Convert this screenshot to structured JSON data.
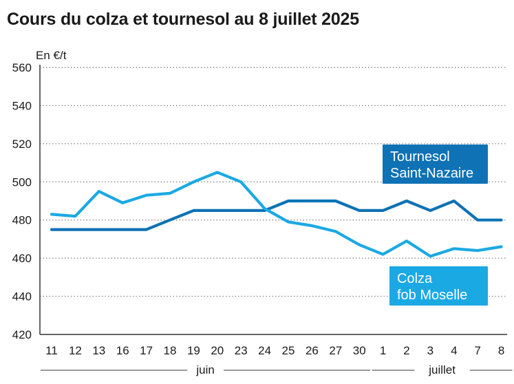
{
  "title": "Cours du colza et tournesol au 8 juillet 2025",
  "chart_data": {
    "type": "line",
    "title": "Cours du colza et tournesol au 8 juillet 2025",
    "ylabel": "En €/t",
    "ylim": [
      420,
      560
    ],
    "yticks": [
      560,
      540,
      520,
      500,
      480,
      460,
      440,
      420
    ],
    "categories": [
      "11",
      "12",
      "13",
      "16",
      "17",
      "18",
      "19",
      "20",
      "23",
      "24",
      "25",
      "26",
      "27",
      "30",
      "1",
      "2",
      "3",
      "4",
      "7",
      "8"
    ],
    "months": [
      {
        "label": "juin",
        "start": 0,
        "end": 13
      },
      {
        "label": "juillet",
        "start": 14,
        "end": 19
      }
    ],
    "grid": true,
    "series": [
      {
        "name": "Tournesol Saint-Nazaire",
        "legend_lines": [
          "Tournesol",
          "Saint-Nazaire"
        ],
        "color": "#0e72b5",
        "values": [
          475,
          475,
          475,
          475,
          475,
          480,
          485,
          485,
          485,
          485,
          490,
          490,
          490,
          485,
          485,
          490,
          485,
          490,
          480,
          480
        ]
      },
      {
        "name": "Colza fob Moselle",
        "legend_lines": [
          "Colza",
          "fob Moselle"
        ],
        "color": "#1ba9e3",
        "values": [
          483,
          482,
          495,
          489,
          493,
          494,
          500,
          505,
          500,
          486,
          479,
          477,
          474,
          467,
          462,
          469,
          461,
          465,
          464,
          466
        ]
      }
    ]
  }
}
